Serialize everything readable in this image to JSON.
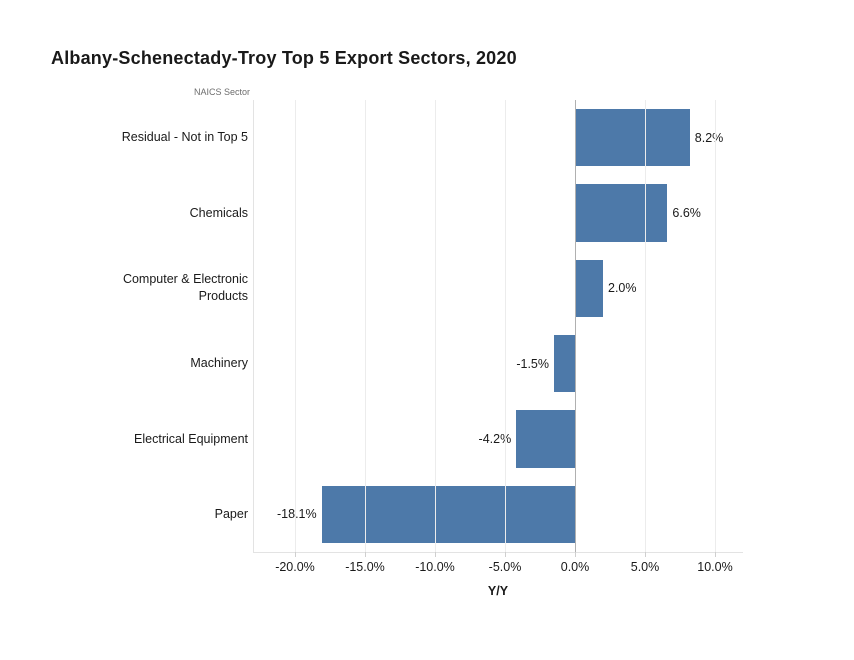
{
  "title": "Albany-Schenectady-Troy Top 5 Export Sectors, 2020",
  "chart_data": {
    "type": "bar",
    "orientation": "horizontal",
    "title": "Albany-Schenectady-Troy Top 5 Export Sectors, 2020",
    "axis_header": "NAICS Sector",
    "categories": [
      "Residual - Not in Top 5",
      "Chemicals",
      "Computer & Electronic Products",
      "Machinery",
      "Electrical Equipment",
      "Paper"
    ],
    "values": [
      8.2,
      6.6,
      2.0,
      -1.5,
      -4.2,
      -18.1
    ],
    "value_labels": [
      "8.2%",
      "6.6%",
      "2.0%",
      "-1.5%",
      "-4.2%",
      "-18.1%"
    ],
    "xlabel": "Y/Y",
    "ylabel": "",
    "x_ticks": [
      -20,
      -15,
      -10,
      -5,
      0,
      5,
      10
    ],
    "x_tick_labels": [
      "-20.0%",
      "-15.0%",
      "-10.0%",
      "-5.0%",
      "0.0%",
      "5.0%",
      "10.0%"
    ],
    "xlim": [
      -23,
      12
    ],
    "grid": true,
    "legend": "none",
    "bar_color": "#4d79a9",
    "gridline_color": "#ececec",
    "zero_line_color": "#b0b0b0"
  }
}
